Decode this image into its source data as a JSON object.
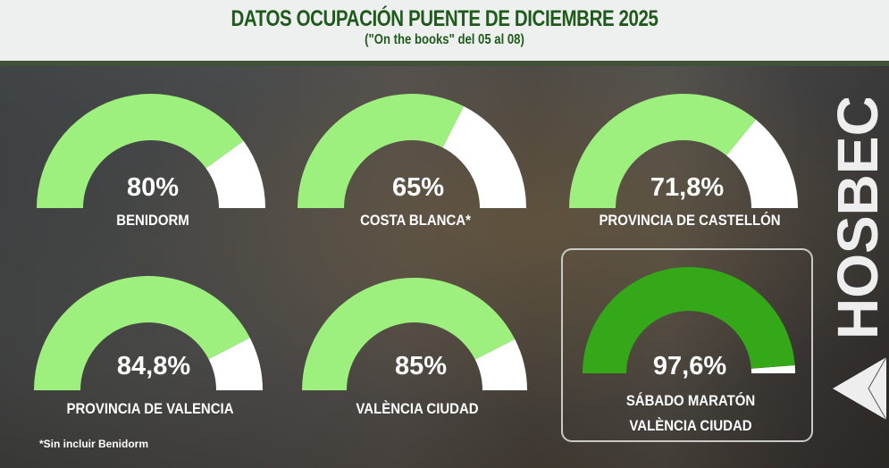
{
  "header": {
    "title": "DATOS OCUPACIÓN PUENTE DE DICIEMBRE 2025",
    "subtitle": "(\"On the books\" del 05 al 08)"
  },
  "colors": {
    "fill": "#9ef07e",
    "highlight_fill": "#34a818",
    "empty": "#ffffff",
    "title": "#1f5a1c"
  },
  "gauges": [
    {
      "value": 80,
      "display": "80%",
      "label": "BENIDORM"
    },
    {
      "value": 65,
      "display": "65%",
      "label": "COSTA BLANCA*"
    },
    {
      "value": 71.8,
      "display": "71,8%",
      "label": "PROVINCIA DE CASTELLÓN"
    },
    {
      "value": 84.8,
      "display": "84,8%",
      "label": "PROVINCIA DE VALENCIA"
    },
    {
      "value": 85,
      "display": "85%",
      "label": "VALÈNCIA CIUDAD"
    },
    {
      "value": 97.6,
      "display": "97,6%",
      "label_line1": "SÁBADO MARATÓN",
      "label_line2": "VALÈNCIA CIUDAD"
    }
  ],
  "footnote": "*Sin incluir Benidorm",
  "logo": {
    "text": "HOSBEC"
  }
}
